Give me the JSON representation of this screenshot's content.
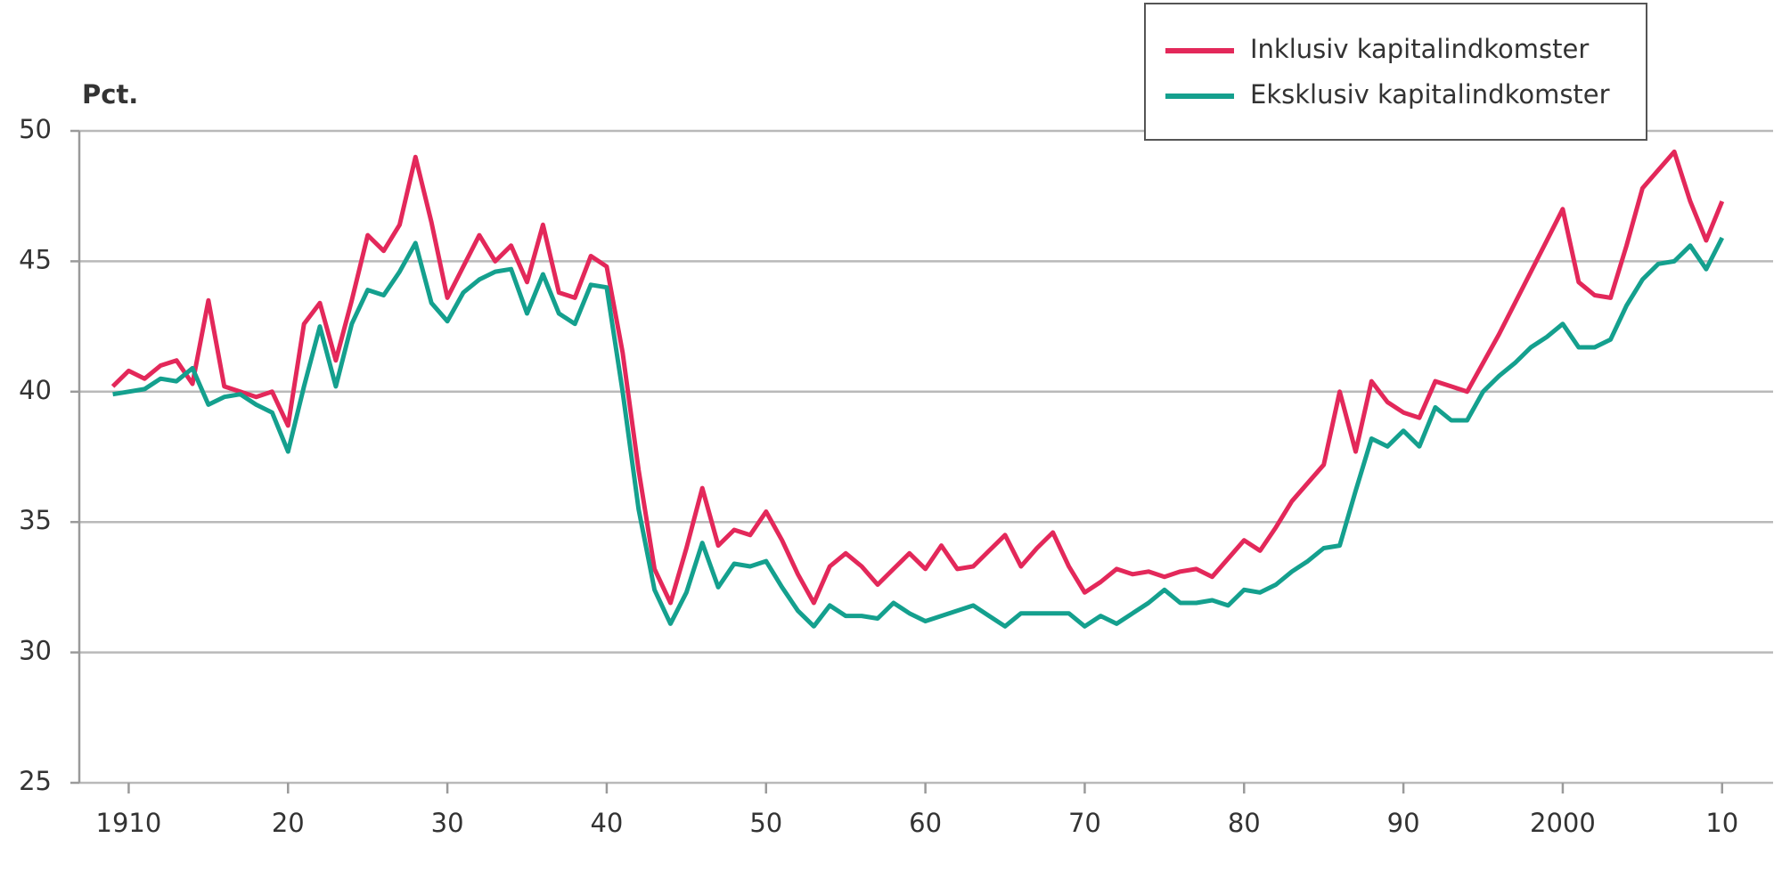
{
  "chart_data": {
    "type": "line",
    "y_label": "Pct.",
    "x": [
      1909,
      1910,
      1911,
      1912,
      1913,
      1914,
      1915,
      1916,
      1917,
      1918,
      1919,
      1920,
      1921,
      1922,
      1923,
      1924,
      1925,
      1926,
      1927,
      1928,
      1929,
      1930,
      1931,
      1932,
      1933,
      1934,
      1935,
      1936,
      1937,
      1938,
      1939,
      1940,
      1941,
      1942,
      1943,
      1944,
      1945,
      1946,
      1947,
      1948,
      1949,
      1950,
      1951,
      1952,
      1953,
      1954,
      1955,
      1956,
      1957,
      1958,
      1959,
      1960,
      1961,
      1962,
      1963,
      1964,
      1965,
      1966,
      1967,
      1968,
      1969,
      1970,
      1971,
      1972,
      1973,
      1974,
      1975,
      1976,
      1977,
      1978,
      1979,
      1980,
      1981,
      1982,
      1983,
      1984,
      1985,
      1986,
      1987,
      1988,
      1989,
      1990,
      1991,
      1992,
      1993,
      1994,
      1995,
      1996,
      1997,
      1998,
      1999,
      2000,
      2001,
      2002,
      2003,
      2004,
      2005,
      2006,
      2007,
      2008,
      2009,
      2010
    ],
    "series": [
      {
        "name": "Inklusiv kapitalindkomster",
        "color": "#e3285a",
        "values": [
          40.2,
          40.8,
          40.5,
          41.0,
          41.2,
          40.3,
          43.5,
          40.2,
          40.0,
          39.8,
          40.0,
          38.7,
          42.6,
          43.4,
          41.2,
          43.5,
          46.0,
          45.4,
          46.4,
          49.0,
          46.5,
          43.6,
          44.8,
          46.0,
          45.0,
          45.6,
          44.2,
          46.4,
          43.8,
          43.6,
          45.2,
          44.8,
          41.5,
          37.0,
          33.2,
          31.9,
          34.0,
          36.3,
          34.1,
          34.7,
          34.5,
          35.4,
          34.3,
          33.0,
          31.9,
          33.3,
          33.8,
          33.3,
          32.6,
          33.2,
          33.8,
          33.2,
          34.1,
          33.2,
          33.3,
          33.9,
          34.5,
          33.3,
          34.0,
          34.6,
          33.3,
          32.3,
          32.7,
          33.2,
          33.0,
          33.1,
          32.9,
          33.1,
          33.2,
          32.9,
          33.6,
          34.3,
          33.9,
          34.8,
          35.8,
          36.5,
          37.2,
          40.0,
          37.7,
          40.4,
          39.6,
          39.2,
          39.0,
          40.4,
          40.2,
          40.0,
          41.1,
          42.2,
          43.4,
          44.6,
          45.8,
          47.0,
          44.2,
          43.7,
          43.6,
          45.6,
          47.8,
          48.5,
          49.2,
          47.3,
          45.8,
          47.3
        ]
      },
      {
        "name": "Eksklusiv kapitalindkomster",
        "color": "#14a08e",
        "values": [
          39.9,
          40.0,
          40.1,
          40.5,
          40.4,
          40.9,
          39.5,
          39.8,
          39.9,
          39.5,
          39.2,
          37.7,
          40.2,
          42.5,
          40.2,
          42.6,
          43.9,
          43.7,
          44.6,
          45.7,
          43.4,
          42.7,
          43.8,
          44.3,
          44.6,
          44.7,
          43.0,
          44.5,
          43.0,
          42.6,
          44.1,
          44.0,
          40.0,
          35.5,
          32.4,
          31.1,
          32.3,
          34.2,
          32.5,
          33.4,
          33.3,
          33.5,
          32.5,
          31.6,
          31.0,
          31.8,
          31.4,
          31.4,
          31.3,
          31.9,
          31.5,
          31.2,
          31.4,
          31.6,
          31.8,
          31.4,
          31.0,
          31.5,
          31.5,
          31.5,
          31.5,
          31.0,
          31.4,
          31.1,
          31.5,
          31.9,
          32.4,
          31.9,
          31.9,
          32.0,
          31.8,
          32.4,
          32.3,
          32.6,
          33.1,
          33.5,
          34.0,
          34.1,
          36.2,
          38.2,
          37.9,
          38.5,
          37.9,
          39.4,
          38.9,
          38.9,
          40.0,
          40.6,
          41.1,
          41.7,
          42.1,
          42.6,
          41.7,
          41.7,
          42.0,
          43.3,
          44.3,
          44.9,
          45.0,
          45.6,
          44.7,
          45.9
        ]
      }
    ],
    "xlim": [
      1906.9,
      2013.2
    ],
    "xticks": [
      {
        "value": 1910,
        "label": "1910"
      },
      {
        "value": 1920,
        "label": "20"
      },
      {
        "value": 1930,
        "label": "30"
      },
      {
        "value": 1940,
        "label": "40"
      },
      {
        "value": 1950,
        "label": "50"
      },
      {
        "value": 1960,
        "label": "60"
      },
      {
        "value": 1970,
        "label": "70"
      },
      {
        "value": 1980,
        "label": "80"
      },
      {
        "value": 1990,
        "label": "90"
      },
      {
        "value": 2000,
        "label": "2000"
      },
      {
        "value": 2010,
        "label": "10"
      }
    ],
    "ylim": [
      25,
      50
    ],
    "yticks": [
      25,
      30,
      35,
      40,
      45,
      50
    ],
    "grid": true,
    "legend": "upper right"
  }
}
